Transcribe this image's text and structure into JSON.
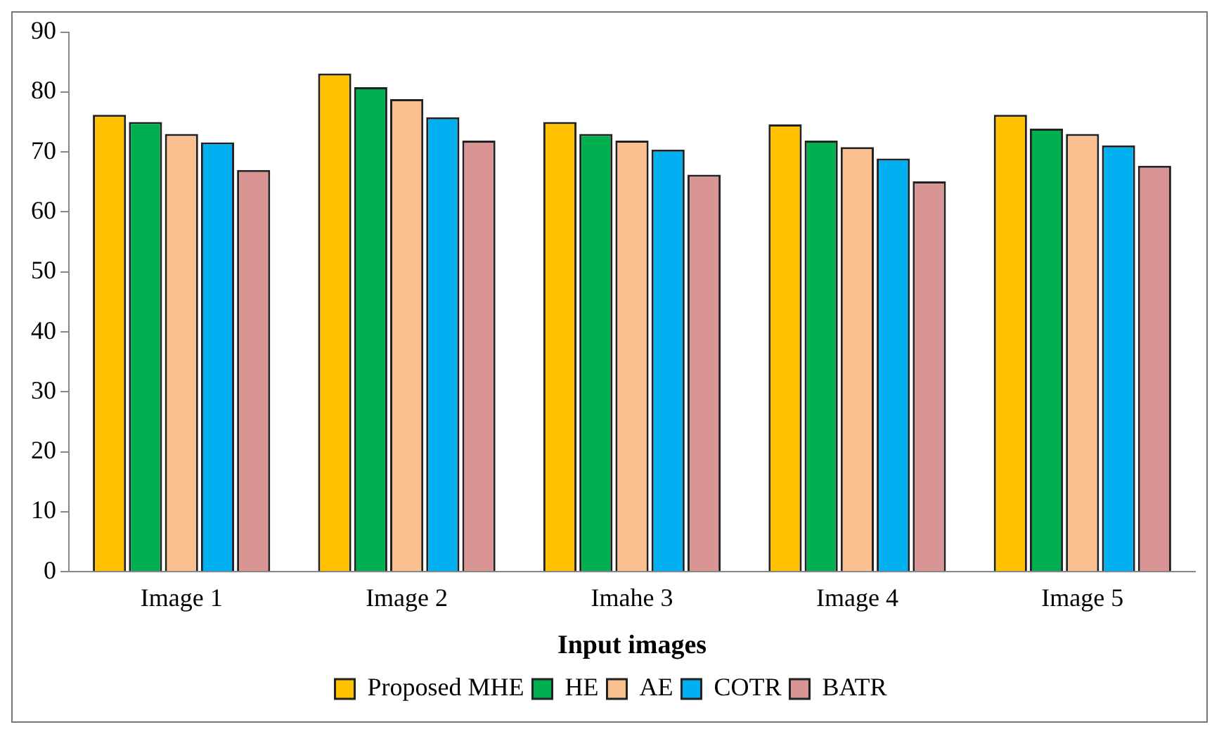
{
  "chart_data": {
    "type": "bar",
    "xlabel": "Input images",
    "categories": [
      "Image 1",
      "Image 2",
      "Imahe 3",
      "Image 4",
      "Image 5"
    ],
    "series": [
      {
        "name": "Proposed MHE",
        "color": "#ffc000",
        "values": [
          76.2,
          83.1,
          75.0,
          74.6,
          76.2
        ]
      },
      {
        "name": "HE",
        "color": "#00b050",
        "values": [
          75.0,
          80.8,
          73.0,
          71.9,
          73.9
        ]
      },
      {
        "name": "AE",
        "color": "#fac090",
        "values": [
          73.0,
          78.8,
          71.9,
          70.8,
          73.0
        ]
      },
      {
        "name": "COTR",
        "color": "#00b0f0",
        "values": [
          71.6,
          75.8,
          70.4,
          68.9,
          71.1
        ]
      },
      {
        "name": "BATR",
        "color": "#d99594",
        "values": [
          67.0,
          71.9,
          66.2,
          65.1,
          67.7
        ]
      }
    ],
    "ylim": [
      0,
      90
    ],
    "yticks": [
      0,
      10,
      20,
      30,
      40,
      50,
      60,
      70,
      80,
      90
    ],
    "grid": false,
    "legend": "bottom"
  }
}
